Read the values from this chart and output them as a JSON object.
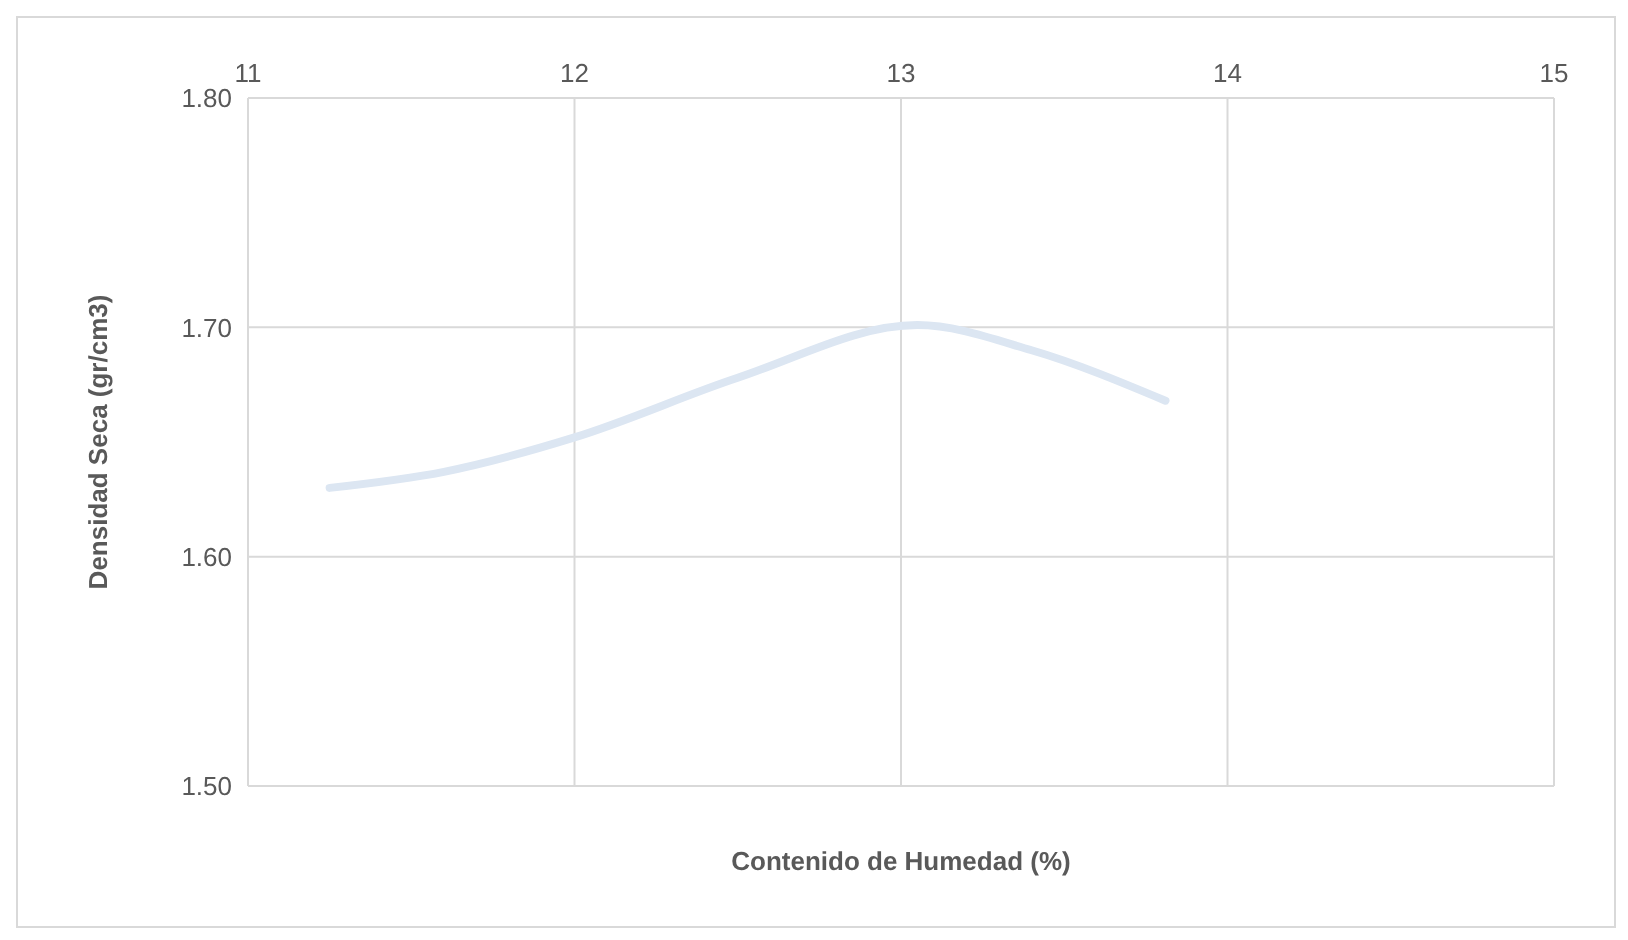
{
  "chart_data": {
    "type": "line",
    "xlabel": "Contenido de Humedad (%)",
    "ylabel": "Densidad Seca (gr/cm3)",
    "xlim": [
      11,
      15
    ],
    "xticks": [
      11,
      12,
      13,
      14,
      15
    ],
    "ylim": [
      1.5,
      1.8
    ],
    "yticks": [
      {
        "value": 1.5,
        "label": "1.50"
      },
      {
        "value": 1.6,
        "label": "1.60"
      },
      {
        "value": 1.7,
        "label": "1.70"
      },
      {
        "value": 1.8,
        "label": "1.80"
      }
    ],
    "grid": true,
    "marker": "none",
    "line_style": "solid",
    "x": [
      11.25,
      11.6,
      12.0,
      12.5,
      13.05,
      13.4,
      13.81
    ],
    "series": [
      {
        "color": "#dce6f2",
        "values": [
          1.63,
          1.637,
          1.652,
          1.678,
          1.701,
          1.69,
          1.668
        ]
      }
    ]
  }
}
